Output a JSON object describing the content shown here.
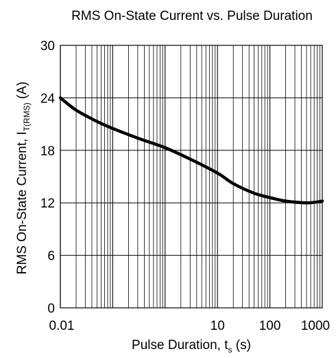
{
  "chart_data": {
    "type": "line",
    "title": "RMS On-State Current vs. Pulse Duration",
    "xlabel": {
      "main": "Pulse Duration, t",
      "sub": "s",
      "unit": " (s)"
    },
    "ylabel": {
      "main": "RMS On-State Current, I",
      "sub": "T(RMS)",
      "unit": " (A)"
    },
    "x_scale": "log",
    "xlim": [
      0.01,
      1000
    ],
    "ylim": [
      0,
      30
    ],
    "x_ticks": [
      {
        "value": 0.01,
        "label": "0.01"
      },
      {
        "value": 10,
        "label": "10"
      },
      {
        "value": 100,
        "label": "100"
      },
      {
        "value": 1000,
        "label": "1000"
      }
    ],
    "y_ticks": [
      {
        "value": 0,
        "label": "0"
      },
      {
        "value": 6,
        "label": "6"
      },
      {
        "value": 12,
        "label": "12"
      },
      {
        "value": 18,
        "label": "18"
      },
      {
        "value": 24,
        "label": "24"
      },
      {
        "value": 30,
        "label": "30"
      }
    ],
    "grid": true,
    "line_color": "#000000",
    "series": [
      {
        "x": [
          0.01,
          0.02,
          0.05,
          0.1,
          0.3,
          1,
          3,
          10,
          20,
          50,
          100,
          200,
          500,
          800,
          1000
        ],
        "y": [
          24.0,
          22.6,
          21.3,
          20.5,
          19.4,
          18.3,
          17.0,
          15.4,
          14.2,
          13.1,
          12.6,
          12.2,
          12.0,
          12.1,
          12.2
        ]
      }
    ]
  }
}
